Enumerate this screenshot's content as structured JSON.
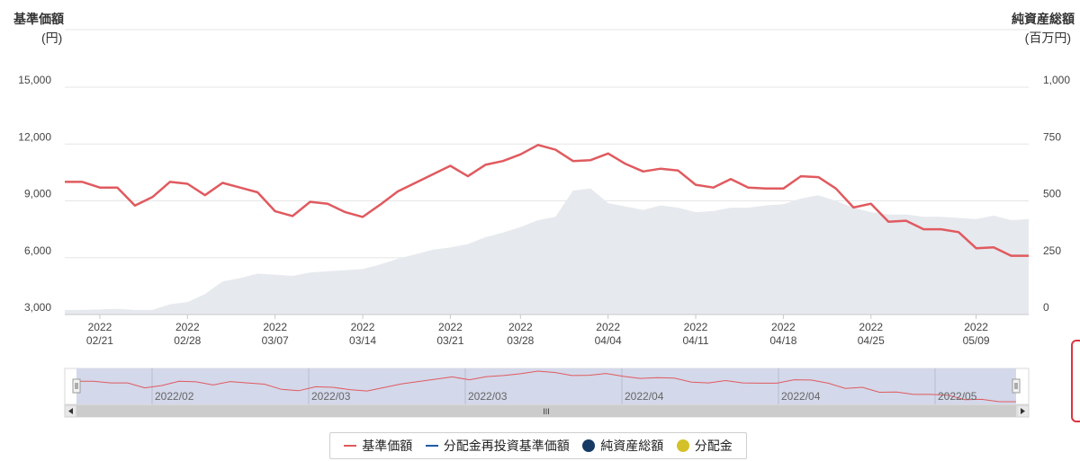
{
  "chart_data": {
    "type": "line",
    "left_axis": {
      "title": "基準価額",
      "unit": "(円)",
      "ticks": [
        "3,000",
        "6,000",
        "9,000",
        "12,000",
        "15,000"
      ],
      "range": [
        3000,
        15000
      ]
    },
    "right_axis": {
      "title": "純資産総額",
      "unit": "(百万円)",
      "ticks": [
        "0",
        "250",
        "500",
        "750",
        "1,000"
      ],
      "range": [
        0,
        1000
      ]
    },
    "x_ticks": [
      {
        "year": "2022",
        "date": "02/21",
        "i": 2
      },
      {
        "year": "2022",
        "date": "02/28",
        "i": 7
      },
      {
        "year": "2022",
        "date": "03/07",
        "i": 12
      },
      {
        "year": "2022",
        "date": "03/14",
        "i": 17
      },
      {
        "year": "2022",
        "date": "03/21",
        "i": 22
      },
      {
        "year": "2022",
        "date": "03/28",
        "i": 26
      },
      {
        "year": "2022",
        "date": "04/04",
        "i": 31
      },
      {
        "year": "2022",
        "date": "04/11",
        "i": 36
      },
      {
        "year": "2022",
        "date": "04/18",
        "i": 41
      },
      {
        "year": "2022",
        "date": "04/25",
        "i": 46
      },
      {
        "year": "2022",
        "date": "05/09",
        "i": 52
      }
    ],
    "series": [
      {
        "name": "基準価額",
        "color": "#e05a5f",
        "values": [
          10000,
          10000,
          9700,
          9700,
          8750,
          9200,
          10000,
          9900,
          9300,
          9950,
          9700,
          9450,
          8450,
          8200,
          8950,
          8850,
          8400,
          8150,
          8800,
          9500,
          9950,
          10400,
          10850,
          10300,
          10900,
          11100,
          11450,
          11950,
          11700,
          11100,
          11150,
          11500,
          10950,
          10550,
          10700,
          10600,
          9850,
          9700,
          10150,
          9700,
          9650,
          9650,
          10300,
          10250,
          9650,
          8650,
          8850,
          7900,
          7950,
          7500,
          7500,
          7350,
          6500,
          6550,
          6100,
          6100
        ]
      },
      {
        "name": "純資産総額",
        "color": "#e6e9ee",
        "values": [
          20,
          20,
          22,
          25,
          20,
          20,
          45,
          55,
          90,
          145,
          160,
          180,
          175,
          170,
          185,
          190,
          195,
          200,
          220,
          245,
          265,
          285,
          295,
          310,
          340,
          360,
          385,
          415,
          430,
          545,
          555,
          490,
          475,
          460,
          480,
          470,
          450,
          455,
          470,
          470,
          480,
          485,
          510,
          525,
          500,
          470,
          450,
          440,
          440,
          430,
          430,
          425,
          420,
          435,
          415,
          420
        ]
      },
      {
        "name": "分配金再投資基準価額",
        "color": "#1f5aa8",
        "values": []
      },
      {
        "name": "分配金",
        "color": "#d4c12a",
        "values": []
      }
    ],
    "navigator_labels": [
      "2022/02",
      "2022/03",
      "2022/03",
      "2022/04",
      "2022/04",
      "2022/05"
    ],
    "scroll_thumb": "III"
  },
  "legend": [
    {
      "label": "基準価額",
      "color": "#e05a5f",
      "kind": "line"
    },
    {
      "label": "分配金再投資基準価額",
      "color": "#1f5aa8",
      "kind": "line"
    },
    {
      "label": "純資産総額",
      "color": "#163a63",
      "kind": "dot"
    },
    {
      "label": "分配金",
      "color": "#d4c12a",
      "kind": "dot"
    }
  ]
}
